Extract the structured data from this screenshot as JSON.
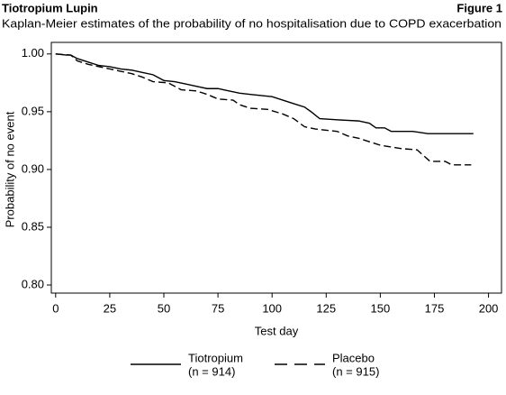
{
  "chart_data": {
    "type": "line",
    "header": "Tiotropium Lupin",
    "figure_label": "Figure 1",
    "title": "Kaplan-Meier estimates of the probability of no hospitalisation due to COPD exacerbation",
    "x_label": "Test day",
    "y_label": "Probability of no event",
    "xlim": [
      -2,
      206
    ],
    "ylim": [
      0.793,
      1.01
    ],
    "xticks": [
      0,
      25,
      50,
      75,
      100,
      125,
      150,
      175,
      200
    ],
    "yticks": [
      {
        "value": 0.8,
        "label": "0.80"
      },
      0.85,
      {
        "value": 0.9,
        "label": "0.90"
      },
      0.95,
      {
        "value": 1.0,
        "label": "1.00"
      }
    ],
    "grid": false,
    "legend_position": "bottom",
    "series": [
      {
        "name": "Tiotropium",
        "legend_note": "(n = 914)",
        "color": "#000000",
        "line_style": "solid",
        "x": [
          0,
          5,
          7,
          10,
          15,
          20,
          25,
          30,
          35,
          40,
          45,
          50,
          55,
          60,
          65,
          70,
          75,
          80,
          85,
          90,
          95,
          100,
          105,
          110,
          115,
          118,
          122,
          130,
          140,
          145,
          148,
          152,
          155,
          165,
          172,
          180,
          193
        ],
        "values": [
          1.0,
          0.999,
          0.999,
          0.996,
          0.993,
          0.99,
          0.989,
          0.987,
          0.986,
          0.984,
          0.982,
          0.977,
          0.976,
          0.974,
          0.972,
          0.97,
          0.97,
          0.968,
          0.966,
          0.965,
          0.964,
          0.963,
          0.96,
          0.957,
          0.954,
          0.95,
          0.944,
          0.943,
          0.942,
          0.94,
          0.936,
          0.936,
          0.933,
          0.933,
          0.931,
          0.931,
          0.931
        ]
      },
      {
        "name": "Placebo",
        "legend_note": "(n = 915)",
        "color": "#000000",
        "line_style": "dashed",
        "x": [
          0,
          7,
          10,
          15,
          20,
          25,
          30,
          35,
          40,
          45,
          52,
          58,
          65,
          70,
          75,
          82,
          85,
          90,
          98,
          105,
          110,
          115,
          120,
          130,
          135,
          140,
          145,
          150,
          160,
          167,
          170,
          173,
          180,
          183,
          192
        ],
        "values": [
          1.0,
          0.999,
          0.994,
          0.991,
          0.989,
          0.987,
          0.985,
          0.983,
          0.98,
          0.976,
          0.975,
          0.969,
          0.968,
          0.965,
          0.961,
          0.96,
          0.956,
          0.953,
          0.952,
          0.948,
          0.944,
          0.937,
          0.935,
          0.933,
          0.929,
          0.927,
          0.924,
          0.921,
          0.918,
          0.917,
          0.912,
          0.907,
          0.907,
          0.904,
          0.904
        ]
      }
    ]
  }
}
